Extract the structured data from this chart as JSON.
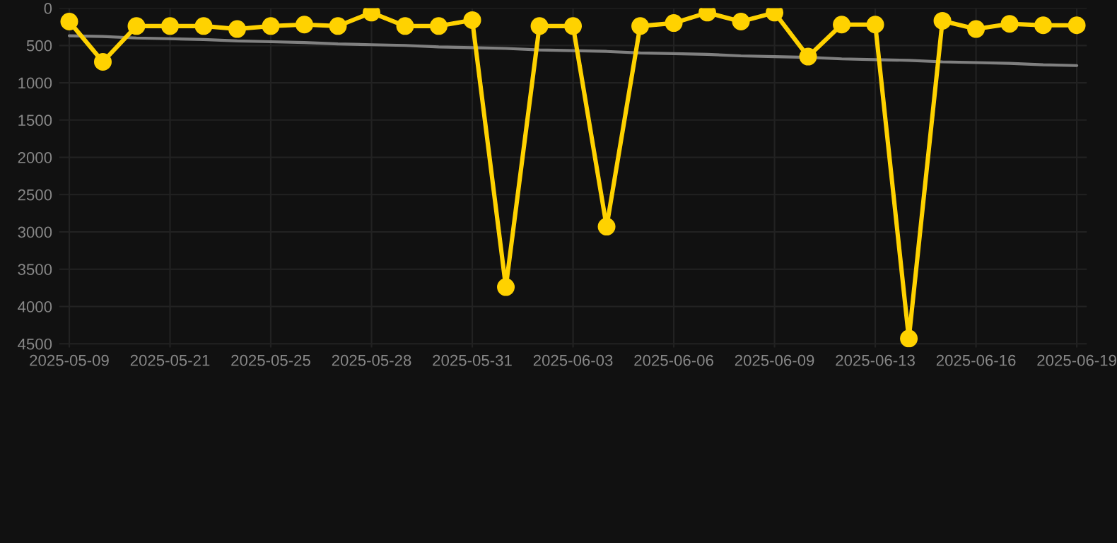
{
  "chart_data": {
    "type": "line",
    "categories": [
      "2025-05-09",
      null,
      null,
      "2025-05-21",
      null,
      null,
      "2025-05-25",
      null,
      null,
      "2025-05-28",
      null,
      null,
      "2025-05-31",
      null,
      null,
      "2025-06-03",
      null,
      null,
      "2025-06-06",
      null,
      null,
      "2025-06-09",
      null,
      null,
      "2025-06-13",
      null,
      null,
      "2025-06-16",
      null,
      null,
      "2025-06-19"
    ],
    "series": [
      {
        "color": "#ffd200",
        "marker": "circle",
        "values": [
          180,
          720,
          240,
          240,
          240,
          280,
          240,
          220,
          240,
          60,
          240,
          240,
          160,
          3740,
          240,
          240,
          2930,
          240,
          200,
          60,
          180,
          60,
          650,
          220,
          220,
          4430,
          170,
          280,
          210,
          230,
          230
        ]
      },
      {
        "color": "#808080",
        "marker": "none",
        "values": [
          370,
          380,
          400,
          410,
          420,
          440,
          450,
          460,
          480,
          490,
          500,
          520,
          530,
          540,
          560,
          570,
          580,
          600,
          610,
          620,
          640,
          650,
          660,
          680,
          690,
          700,
          720,
          730,
          740,
          760,
          770
        ]
      }
    ],
    "ylim": [
      4550,
      0
    ],
    "yticks": [
      0,
      500,
      1000,
      1500,
      2000,
      2500,
      3000,
      3500,
      4000,
      4500
    ],
    "grid": true
  }
}
